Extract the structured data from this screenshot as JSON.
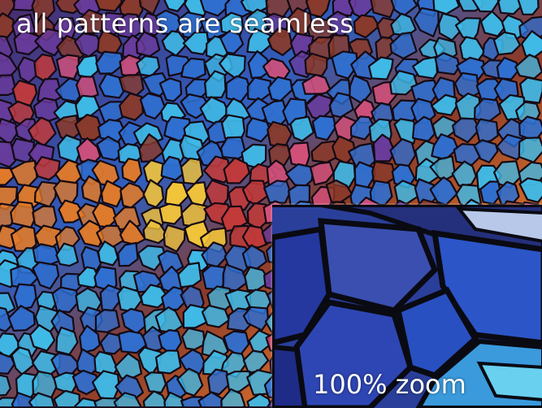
{
  "title_caption": "all patterns are seamless",
  "zoom_caption": "100% zoom",
  "image": {
    "description_icon": "stained-glass-mosaic-icon",
    "colors": {
      "blue": "#2f6fd0",
      "cyan": "#3fb9e6",
      "purple": "#6a3b9c",
      "red": "#c23a3a",
      "orange": "#e07a2a",
      "yellow": "#f2c43a",
      "brown": "#8a3a2a",
      "pink": "#d2507a"
    }
  }
}
